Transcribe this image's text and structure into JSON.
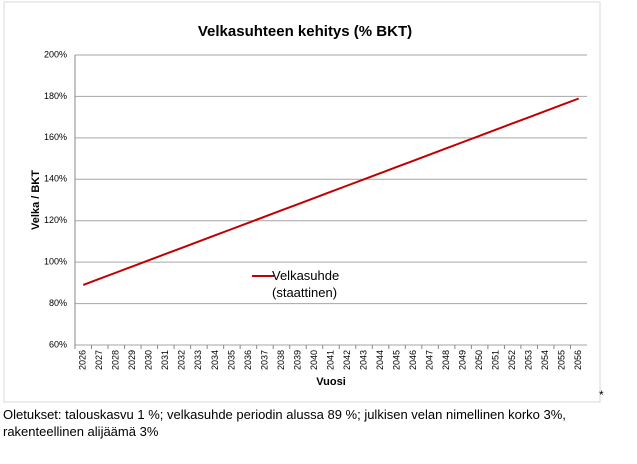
{
  "chart_data": {
    "type": "line",
    "title": "Velkasuhteen kehitys (% BKT)",
    "x_label": "Vuosi",
    "y_label": "Velka / BKT",
    "categories": [
      "2026",
      "2027",
      "2028",
      "2029",
      "2030",
      "2031",
      "2032",
      "2033",
      "2034",
      "2035",
      "2036",
      "2037",
      "2038",
      "2039",
      "2040",
      "2041",
      "2042",
      "2043",
      "2044",
      "2045",
      "2046",
      "2047",
      "2048",
      "2049",
      "2050",
      "2051",
      "2052",
      "2053",
      "2054",
      "2055",
      "2056"
    ],
    "series": [
      {
        "name": "Velkasuhde (staattinen)",
        "color": "#c00000",
        "values": [
          89,
          92,
          95,
          98,
          101,
          104,
          107,
          110,
          113,
          116,
          119,
          122,
          125,
          128,
          131,
          134,
          137,
          140,
          143,
          146,
          149,
          152,
          155,
          158,
          161,
          164,
          167,
          170,
          173,
          176,
          179
        ]
      }
    ],
    "ylim": [
      60,
      200
    ],
    "yticks": [
      {
        "value": 60,
        "label": "60%"
      },
      {
        "value": 80,
        "label": "80%"
      },
      {
        "value": 100,
        "label": "100%"
      },
      {
        "value": 120,
        "label": "120%"
      },
      {
        "value": 140,
        "label": "140%"
      },
      {
        "value": 160,
        "label": "160%"
      },
      {
        "value": 180,
        "label": "180%"
      },
      {
        "value": 200,
        "label": "200%"
      }
    ],
    "grid": true
  },
  "footnote_marker": "*",
  "footnote": "Oletukset: talouskasvu 1 %; velkasuhde periodin alussa 89 %; julkisen velan nimellinen korko 3%, rakenteellinen alijäämä 3%"
}
